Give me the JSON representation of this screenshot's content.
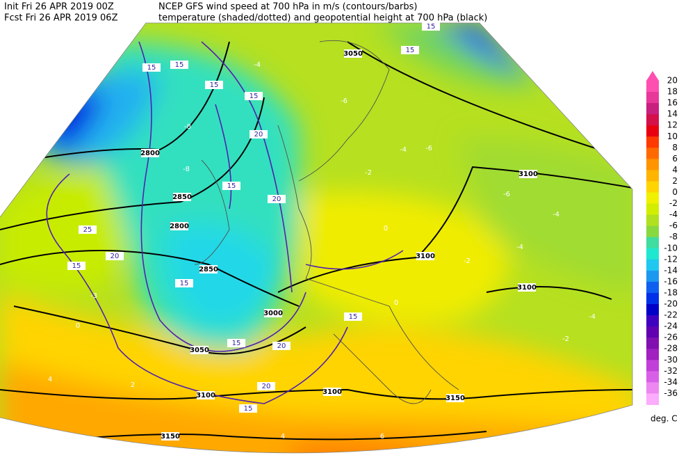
{
  "header": {
    "init": "Init  Fri 26 APR 2019 00Z",
    "fcst": "Fcst Fri 26 APR 2019 06Z",
    "title1": "NCEP GFS wind speed at 700 hPa in m/s (contours/barbs)",
    "title2": "temperature (shaded/dotted) and geopotential height at 700 hPa (black)"
  },
  "colorbar": {
    "unit": "deg. C",
    "ticks": [
      "20",
      "18",
      "16",
      "14",
      "12",
      "10",
      "8",
      "6",
      "4",
      "2",
      "0",
      "-2",
      "-4",
      "-6",
      "-8",
      "-10",
      "-12",
      "-14",
      "-16",
      "-18",
      "-20",
      "-22",
      "-24",
      "-26",
      "-28",
      "-30",
      "-32",
      "-34",
      "-36"
    ],
    "colors": [
      "#ff4fb0",
      "#e8389a",
      "#c8207e",
      "#d4104a",
      "#e80010",
      "#ff3a00",
      "#ff6a00",
      "#ff9400",
      "#ffb400",
      "#ffd400",
      "#f0f000",
      "#d2ee00",
      "#b0e020",
      "#88d840",
      "#40dca0",
      "#20e8d0",
      "#20c8f0",
      "#1c98f0",
      "#1060f0",
      "#0030e8",
      "#0000c8",
      "#4000c0",
      "#6000b0",
      "#8010b0",
      "#a020c0",
      "#c040d8",
      "#d860e8",
      "#ec88f0",
      "#fcacfc"
    ]
  },
  "map_labels": {
    "heights": [
      "2800",
      "2850",
      "2800",
      "2850",
      "3000",
      "3050",
      "3100",
      "3100",
      "3150",
      "3150",
      "3100",
      "3100",
      "3100",
      "3050"
    ],
    "winds": [
      "15",
      "15",
      "15",
      "15",
      "15",
      "15",
      "15",
      "15",
      "15",
      "15",
      "15",
      "15",
      "20",
      "20",
      "20",
      "20",
      "20",
      "25"
    ],
    "temps": [
      "-8",
      "-8",
      "-4",
      "-4",
      "-4",
      "-4",
      "-6",
      "-6",
      "-6",
      "-2",
      "-2",
      "-2",
      "0",
      "0",
      "0",
      "-4",
      "2",
      "4",
      "4",
      "6",
      "-3"
    ]
  }
}
